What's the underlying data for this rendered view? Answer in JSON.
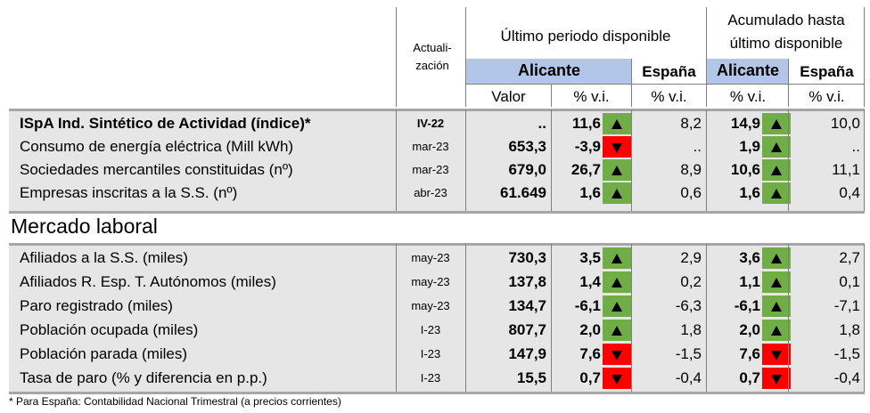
{
  "header": {
    "actualizacion_line1": "Actuali-",
    "actualizacion_line2": "zación",
    "ultimo_periodo": "Último periodo disponible",
    "acumulado_line1": "Acumulado hasta",
    "acumulado_line2": "último disponible",
    "alicante_1": "Alicante",
    "espana_1": "España",
    "alicante_2": "Alicante",
    "espana_2": "España",
    "valor": "Valor",
    "vi_1": "% v.i.",
    "vi_2": "% v.i.",
    "vi_3": "% v.i.",
    "vi_4": "% v.i."
  },
  "section_laboral": "Mercado laboral",
  "indicator_colors": {
    "up": "#70ad47",
    "down": "#ff0000"
  },
  "rows": [
    {
      "label": "ISpA Ind. Sintético de Actividad (índice)*",
      "date": "IV-22",
      "valor": "..",
      "vi": "11,6",
      "dir": "up",
      "esp": "8,2",
      "acum": "14,9",
      "acum_dir": "up",
      "acum_esp": "10,0"
    },
    {
      "label": "Consumo de energía eléctrica (Mill kWh)",
      "date": "mar-23",
      "valor": "653,3",
      "vi": "-3,9",
      "dir": "down",
      "esp": "..",
      "acum": "1,9",
      "acum_dir": "up",
      "acum_esp": ".."
    },
    {
      "label": "Sociedades mercantiles constituidas (nº)",
      "date": "mar-23",
      "valor": "679,0",
      "vi": "26,7",
      "dir": "up",
      "esp": "8,9",
      "acum": "10,6",
      "acum_dir": "up",
      "acum_esp": "11,1"
    },
    {
      "label": "Empresas inscritas a la S.S. (nº)",
      "date": "abr-23",
      "valor": "61.649",
      "vi": "1,6",
      "dir": "up",
      "esp": "0,6",
      "acum": "1,6",
      "acum_dir": "up",
      "acum_esp": "0,4"
    },
    {
      "label": "Afiliados a la S.S. (miles)",
      "date": "may-23",
      "valor": "730,3",
      "vi": "3,5",
      "dir": "up",
      "esp": "2,9",
      "acum": "3,6",
      "acum_dir": "up",
      "acum_esp": "2,7"
    },
    {
      "label": "Afiliados R. Esp. T. Autónomos (miles)",
      "date": "may-23",
      "valor": "137,8",
      "vi": "1,4",
      "dir": "up",
      "esp": "0,2",
      "acum": "1,1",
      "acum_dir": "up",
      "acum_esp": "0,1"
    },
    {
      "label": "Paro registrado (miles)",
      "date": "may-23",
      "valor": "134,7",
      "vi": "-6,1",
      "dir": "up",
      "esp": "-6,3",
      "acum": "-6,1",
      "acum_dir": "up",
      "acum_esp": "-7,1"
    },
    {
      "label": "Población ocupada (miles)",
      "date": "I-23",
      "valor": "807,7",
      "vi": "2,0",
      "dir": "up",
      "esp": "1,8",
      "acum": "2,0",
      "acum_dir": "up",
      "acum_esp": "1,8"
    },
    {
      "label": "Población parada (miles)",
      "date": "I-23",
      "valor": "147,9",
      "vi": "7,6",
      "dir": "down",
      "esp": "-1,5",
      "acum": "7,6",
      "acum_dir": "down",
      "acum_esp": "-1,5"
    },
    {
      "label": "Tasa de paro (% y diferencia en p.p.)",
      "date": "I-23",
      "valor": "15,5",
      "vi": "0,7",
      "dir": "down",
      "esp": "-0,4",
      "acum": "0,7",
      "acum_dir": "down",
      "acum_esp": "-0,4"
    }
  ],
  "footnote": "* Para España: Contabilidad Nacional Trimestral (a precios corrientes)"
}
